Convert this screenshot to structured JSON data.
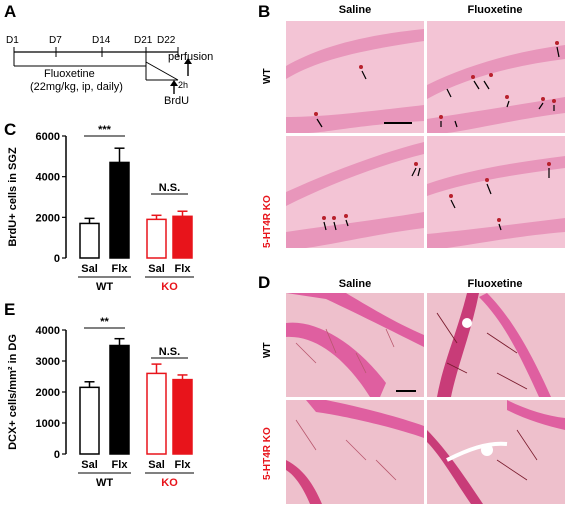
{
  "panels": {
    "A": {
      "letter": "A",
      "days": [
        "D1",
        "D7",
        "D14",
        "D21",
        "D22"
      ],
      "treatment": "Fluoxetine",
      "dose": "(22mg/kg, ip, daily)",
      "perfusion": "perfusion",
      "interval": "2h",
      "brdu": "BrdU"
    },
    "B": {
      "letter": "B",
      "col_saline": "Saline",
      "col_fluoxetine": "Fluoxetine",
      "row_wt": "WT",
      "row_ko": "5-HT4R KO"
    },
    "C": {
      "letter": "C"
    },
    "D": {
      "letter": "D",
      "col_saline": "Saline",
      "col_fluoxetine": "Fluoxetine",
      "row_wt": "WT",
      "row_ko": "5-HT4R KO"
    },
    "E": {
      "letter": "E"
    }
  },
  "colors": {
    "ko_red": "#e8141b",
    "wt_black": "#000000",
    "tissue": "#f0b8cc",
    "cell_layer": "#e36fa8"
  },
  "chart_data": [
    {
      "type": "bar",
      "panel": "C",
      "categories": [
        "Sal",
        "Flx",
        "Sal",
        "Flx"
      ],
      "groups": [
        "WT",
        "KO"
      ],
      "values": [
        1700,
        4700,
        1900,
        2050
      ],
      "errors": [
        250,
        700,
        200,
        250
      ],
      "ylabel": "BrdU+ cells in SGZ",
      "yticks": [
        "0",
        "2000",
        "4000",
        "6000"
      ],
      "ylim": [
        0,
        6000
      ],
      "significance": [
        "***",
        "N.S."
      ]
    },
    {
      "type": "bar",
      "panel": "E",
      "categories": [
        "Sal",
        "Flx",
        "Sal",
        "Flx"
      ],
      "groups": [
        "WT",
        "KO"
      ],
      "values": [
        2150,
        3500,
        2600,
        2400
      ],
      "errors": [
        180,
        220,
        300,
        150
      ],
      "ylabel": "DCX+ cells/mm² in DG",
      "yticks": [
        "0",
        "1000",
        "2000",
        "3000",
        "4000"
      ],
      "ylim": [
        0,
        4000
      ],
      "significance": [
        "**",
        "N.S."
      ]
    }
  ]
}
